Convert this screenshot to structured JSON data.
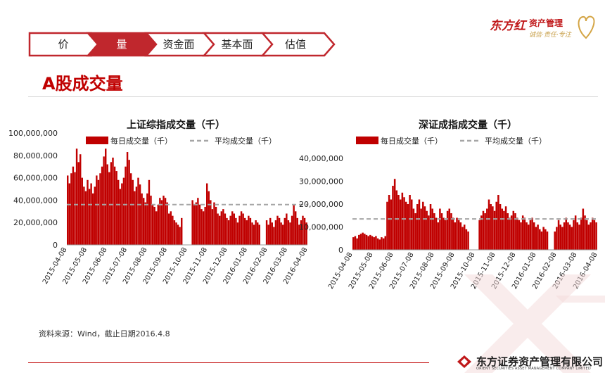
{
  "nav": {
    "tabs": [
      {
        "label": "价",
        "active": false
      },
      {
        "label": "量",
        "active": true
      },
      {
        "label": "资金面",
        "active": false
      },
      {
        "label": "基本面",
        "active": false
      },
      {
        "label": "估值",
        "active": false
      }
    ]
  },
  "logo": {
    "brand": "东方红",
    "name": "资产管理",
    "slogan": "诚信·责任·专注"
  },
  "page": {
    "title": "A股成交量",
    "source": "资料来源：Wind，截止日期2016.4.8"
  },
  "footer": {
    "company": "东方证券资产管理有限公司",
    "company_en": "ORIENT SECURITIES ASSET MANAGEMENT COMPANY LIMITED"
  },
  "colors": {
    "bar": "#c00000",
    "avg_line": "#a6a6a6",
    "nav_active": "#c0272d",
    "nav_border": "#c0272d"
  },
  "chart_data": [
    {
      "type": "bar",
      "title": "上证综指成交量（千）",
      "legend": {
        "bar": "每日成交量（千）",
        "line": "平均成交量（千）",
        "position": "top"
      },
      "ylim": [
        0,
        100000000
      ],
      "yticks": [
        "0",
        "20,000,000",
        "40,000,000",
        "60,000,000",
        "80,000,000",
        "100,000,000"
      ],
      "xticks": [
        "2015-04-08",
        "2015-05-08",
        "2015-06-08",
        "2015-07-08",
        "2015-08-08",
        "2015-09-08",
        "2015-10-08",
        "2015-11-08",
        "2015-12-08",
        "2016-01-08",
        "2016-02-08",
        "2016-03-08",
        "2016-04-08"
      ],
      "average": 36000000,
      "values": [
        62000000,
        55000000,
        64000000,
        70000000,
        65000000,
        86000000,
        74000000,
        81000000,
        60000000,
        52000000,
        48000000,
        58000000,
        50000000,
        55000000,
        46000000,
        52000000,
        62000000,
        58000000,
        64000000,
        70000000,
        79000000,
        86000000,
        72000000,
        65000000,
        74000000,
        78000000,
        70000000,
        66000000,
        58000000,
        50000000,
        55000000,
        60000000,
        70000000,
        83000000,
        76000000,
        64000000,
        58000000,
        48000000,
        52000000,
        60000000,
        54000000,
        46000000,
        42000000,
        38000000,
        46000000,
        58000000,
        44000000,
        36000000,
        34000000,
        30000000,
        36000000,
        42000000,
        40000000,
        44000000,
        42000000,
        38000000,
        28000000,
        30000000,
        26000000,
        22000000,
        20000000,
        18000000,
        16000000,
        24000000,
        0,
        0,
        0,
        0,
        0,
        40000000,
        36000000,
        38000000,
        42000000,
        36000000,
        32000000,
        30000000,
        34000000,
        55000000,
        48000000,
        40000000,
        32000000,
        38000000,
        34000000,
        28000000,
        26000000,
        30000000,
        32000000,
        28000000,
        24000000,
        22000000,
        26000000,
        30000000,
        28000000,
        24000000,
        20000000,
        26000000,
        30000000,
        28000000,
        24000000,
        22000000,
        26000000,
        24000000,
        20000000,
        18000000,
        22000000,
        20000000,
        18000000,
        0,
        0,
        0,
        22000000,
        18000000,
        24000000,
        20000000,
        16000000,
        22000000,
        26000000,
        24000000,
        20000000,
        18000000,
        24000000,
        28000000,
        22000000,
        20000000,
        26000000,
        36000000,
        30000000,
        24000000,
        18000000,
        22000000,
        26000000,
        24000000,
        20000000
      ]
    },
    {
      "type": "bar",
      "title": "深证成指成交量（千）",
      "legend": {
        "bar": "每日成交量（千）",
        "line": "平均成交量（千）",
        "position": "top"
      },
      "ylim": [
        0,
        40000000
      ],
      "yticks": [
        "0",
        "10,000,000",
        "20,000,000",
        "30,000,000",
        "40,000,000"
      ],
      "xticks": [
        "2015-04-08",
        "2015-05-08",
        "2015-06-08",
        "2015-07-08",
        "2015-08-08",
        "2015-09-08",
        "2015-10-08",
        "2015-11-08",
        "2015-12-08",
        "2016-01-08",
        "2016-02-08",
        "2016-03-08",
        "2016-04-08"
      ],
      "average": 13500000,
      "values": [
        5500000,
        6000000,
        5000000,
        6500000,
        7000000,
        7500000,
        7000000,
        6500000,
        6000000,
        6500000,
        6000000,
        5500000,
        6000000,
        5000000,
        4500000,
        5500000,
        5000000,
        6000000,
        21000000,
        24000000,
        22000000,
        28000000,
        31000000,
        26000000,
        24000000,
        22000000,
        25000000,
        23000000,
        21000000,
        20000000,
        24000000,
        22000000,
        18000000,
        16000000,
        20000000,
        22000000,
        18000000,
        21000000,
        19000000,
        17000000,
        15000000,
        20000000,
        18000000,
        16000000,
        14000000,
        12000000,
        18000000,
        16000000,
        14000000,
        13000000,
        17000000,
        18000000,
        16000000,
        14000000,
        12000000,
        14000000,
        13000000,
        12000000,
        10000000,
        11000000,
        9000000,
        8000000,
        0,
        0,
        0,
        0,
        0,
        13000000,
        15000000,
        17000000,
        16000000,
        18000000,
        22000000,
        20000000,
        19000000,
        17000000,
        21000000,
        24000000,
        20000000,
        18000000,
        17000000,
        19000000,
        16000000,
        14000000,
        15000000,
        17000000,
        16000000,
        14000000,
        13000000,
        12000000,
        15000000,
        14000000,
        12000000,
        11000000,
        13000000,
        14000000,
        12000000,
        10000000,
        11000000,
        9000000,
        8000000,
        10000000,
        9000000,
        8000000,
        0,
        0,
        0,
        8000000,
        10000000,
        13000000,
        11000000,
        10000000,
        12000000,
        14000000,
        12000000,
        11000000,
        10000000,
        13000000,
        15000000,
        12000000,
        11000000,
        14000000,
        18000000,
        15000000,
        13000000,
        11000000,
        12000000,
        14000000,
        13000000,
        12000000
      ]
    }
  ]
}
